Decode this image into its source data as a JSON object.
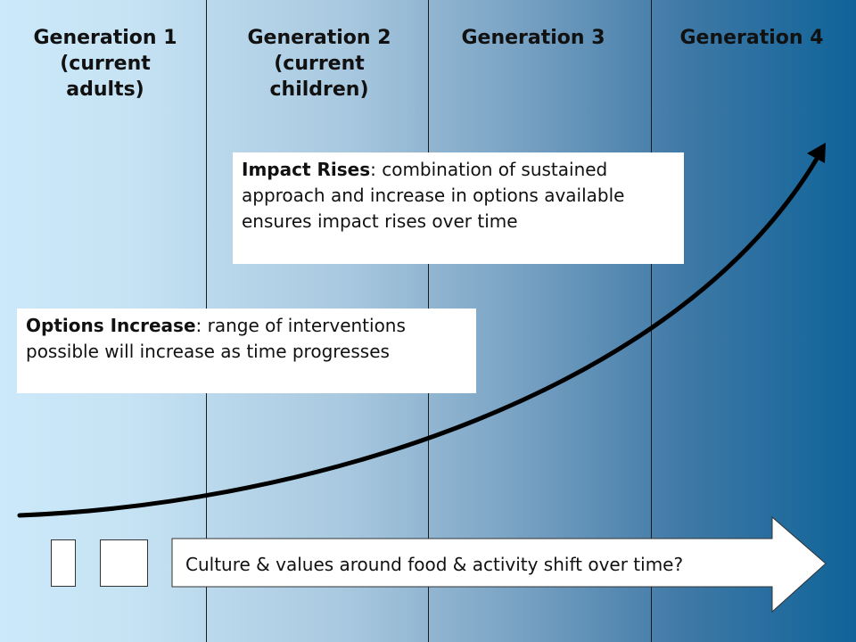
{
  "generations": [
    {
      "lines": [
        "Generation 1",
        "(current",
        "adults)"
      ]
    },
    {
      "lines": [
        "Generation 2",
        "(current",
        "children)"
      ]
    },
    {
      "lines": [
        "Generation 3"
      ]
    },
    {
      "lines": [
        "Generation 4"
      ]
    }
  ],
  "impact_callout": {
    "heading": "Impact Rises",
    "text": ": combination of sustained approach and increase in options available ensures impact rises over time"
  },
  "options_callout": {
    "heading": "Options Increase",
    "text": ": range of interventions possible will increase as time progresses"
  },
  "culture_arrow": {
    "text": "Culture & values around food & activity shift over time?"
  },
  "colors": {
    "background_left": "#cbe9fa",
    "background_right": "#0f6399",
    "curve": "#000000"
  }
}
